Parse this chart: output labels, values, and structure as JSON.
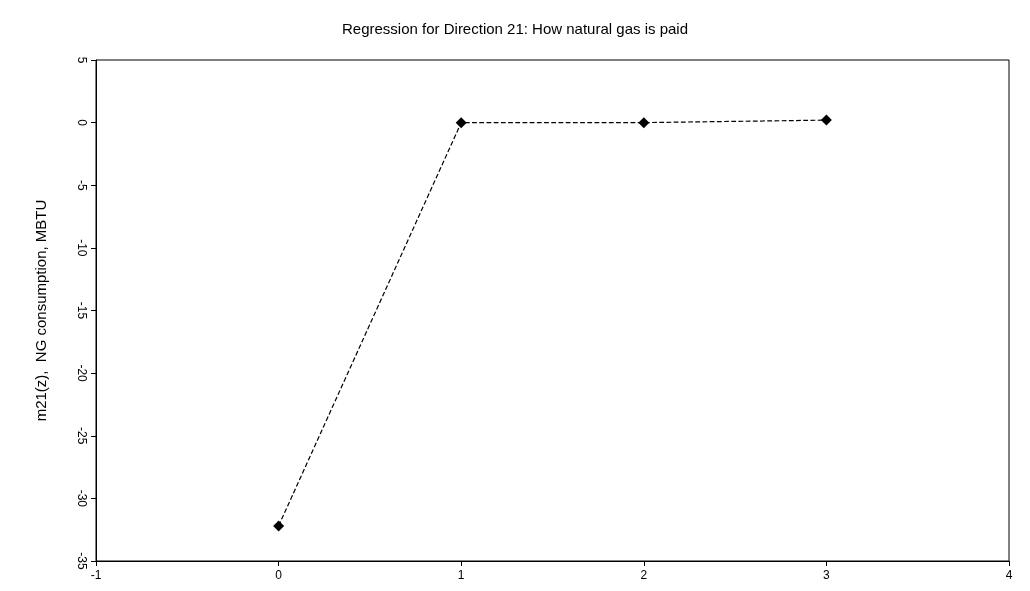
{
  "chart_data": {
    "type": "line",
    "title": "Regression for Direction 21: How natural gas is paid",
    "ylabel": "m21(z),  NG consumption, MBTU",
    "x": [
      0,
      1,
      2,
      3
    ],
    "series": [
      {
        "color": "#000000",
        "values": [
          -32.2,
          0,
          0,
          0.2
        ]
      }
    ],
    "xlim": [
      -1,
      4
    ],
    "xticks": [
      -1,
      0,
      1,
      2,
      3,
      4
    ],
    "ylim": [
      -35,
      5
    ],
    "yticks": [
      -35,
      -30,
      -25,
      -20,
      -15,
      -10,
      -5,
      0,
      5
    ],
    "grid": false,
    "marker": "diamond",
    "line_style": "dashed"
  }
}
